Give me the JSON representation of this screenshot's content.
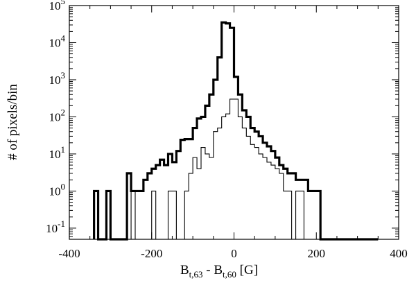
{
  "chart_data": {
    "type": "histogram",
    "xlim": [
      -400,
      400
    ],
    "ylim": [
      0.05,
      100000
    ],
    "yscale": "log",
    "grid": false,
    "legend": "none",
    "x_ticks": [
      "-400",
      "-200",
      "0",
      "200",
      "400"
    ],
    "y_ticks": [
      {
        "value": 100000,
        "base": "10",
        "exp": "5"
      },
      {
        "value": 10000,
        "base": "10",
        "exp": "4"
      },
      {
        "value": 1000,
        "base": "10",
        "exp": "3"
      },
      {
        "value": 100,
        "base": "10",
        "exp": "2"
      },
      {
        "value": 10,
        "base": "10",
        "exp": "1"
      },
      {
        "value": 1,
        "base": "10",
        "exp": "0"
      },
      {
        "value": 0.1,
        "base": "10",
        "exp": "-1"
      }
    ],
    "xlabel": {
      "main1": "B",
      "sub1": "t,63",
      "mid": " - B",
      "sub2": "t,60",
      "tail": " [G]"
    },
    "ylabel": "# of pixels/bin",
    "bin_width": 10,
    "series": [
      {
        "style": "thick",
        "bin_left": [
          -340,
          -330,
          -320,
          -310,
          -300,
          -290,
          -280,
          -270,
          -260,
          -250,
          -240,
          -230,
          -220,
          -210,
          -200,
          -190,
          -180,
          -170,
          -160,
          -150,
          -140,
          -130,
          -120,
          -110,
          -100,
          -90,
          -80,
          -70,
          -60,
          -50,
          -40,
          -30,
          -20,
          -10,
          0,
          10,
          20,
          30,
          40,
          50,
          60,
          70,
          80,
          90,
          100,
          110,
          120,
          130,
          140,
          150,
          160,
          170,
          180,
          190,
          200,
          210,
          220,
          230,
          240,
          250,
          260,
          270,
          280,
          290,
          300,
          310,
          320,
          330,
          340
        ],
        "values": [
          1,
          0.05,
          0.05,
          1,
          0.05,
          0.05,
          0.05,
          0.05,
          3,
          1,
          1,
          1,
          2,
          3,
          4,
          5,
          7,
          5,
          10,
          6,
          12,
          24,
          25,
          25,
          50,
          90,
          100,
          200,
          400,
          1000,
          4000,
          35000,
          33000,
          25000,
          1200,
          400,
          150,
          100,
          50,
          40,
          30,
          20,
          16,
          12,
          8,
          5,
          4,
          3,
          3,
          2,
          2,
          2,
          1,
          1,
          1,
          0.05,
          0.05,
          0.05,
          0.05,
          0.05,
          0.05,
          0.05,
          0.05,
          0.05,
          0.05,
          0.05,
          0.05,
          0.05,
          0.05
        ]
      },
      {
        "style": "thin",
        "bin_left": [
          -250,
          -240,
          -230,
          -220,
          -210,
          -200,
          -190,
          -180,
          -170,
          -160,
          -150,
          -140,
          -130,
          -120,
          -110,
          -100,
          -90,
          -80,
          -70,
          -60,
          -50,
          -40,
          -30,
          -20,
          -10,
          0,
          10,
          20,
          30,
          40,
          50,
          60,
          70,
          80,
          90,
          100,
          110,
          120,
          130,
          140,
          150,
          160,
          170,
          180,
          190,
          200
        ],
        "values": [
          1,
          0.05,
          0.05,
          0.05,
          0.05,
          1,
          0.05,
          0.05,
          0.05,
          1,
          1,
          0.05,
          0.05,
          1,
          3,
          8,
          4,
          15,
          10,
          8,
          40,
          50,
          100,
          120,
          300,
          300,
          100,
          50,
          30,
          18,
          15,
          10,
          8,
          6,
          5,
          4,
          3,
          1,
          1,
          0.05,
          1,
          1,
          0.05,
          0.05,
          0.05,
          0.05
        ]
      }
    ]
  }
}
